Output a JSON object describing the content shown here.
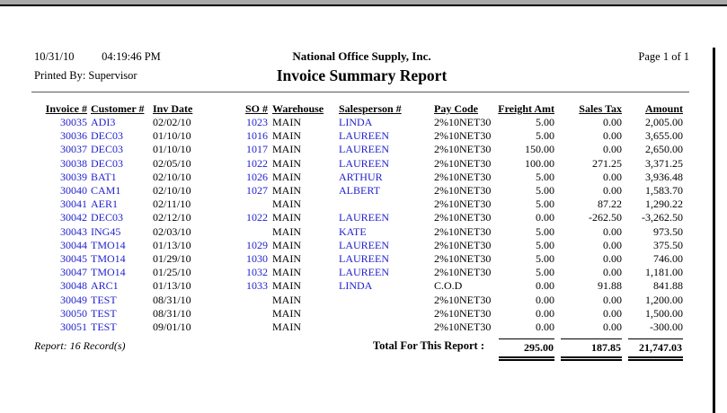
{
  "colors": {
    "link_blue": "#2222cc",
    "topbar_gray": "#a9a9a9"
  },
  "header": {
    "date": "10/31/10",
    "time": "04:19:46 PM",
    "company": "National Office Supply, Inc.",
    "page": "Page 1 of 1",
    "printed_by": "Printed By: Supervisor",
    "title": "Invoice Summary Report"
  },
  "table": {
    "columns": {
      "invoice": "Invoice #",
      "customer": "Customer #",
      "date": "Inv Date",
      "so": "SO #",
      "warehouse": "Warehouse",
      "salesperson": "Salesperson #",
      "paycode": "Pay Code",
      "freight": "Freight Amt",
      "tax": "Sales Tax",
      "amount": "Amount"
    },
    "rows": [
      {
        "invoice": "30035",
        "customer": "ADI3",
        "date": "02/02/10",
        "so": "1023",
        "warehouse": "MAIN",
        "salesperson": "LINDA",
        "paycode": "2%10NET30",
        "freight": "5.00",
        "tax": "0.00",
        "amount": "2,005.00"
      },
      {
        "invoice": "30036",
        "customer": "DEC03",
        "date": "01/10/10",
        "so": "1016",
        "warehouse": "MAIN",
        "salesperson": "LAUREEN",
        "paycode": "2%10NET30",
        "freight": "5.00",
        "tax": "0.00",
        "amount": "3,655.00"
      },
      {
        "invoice": "30037",
        "customer": "DEC03",
        "date": "01/10/10",
        "so": "1017",
        "warehouse": "MAIN",
        "salesperson": "LAUREEN",
        "paycode": "2%10NET30",
        "freight": "150.00",
        "tax": "0.00",
        "amount": "2,650.00"
      },
      {
        "invoice": "30038",
        "customer": "DEC03",
        "date": "02/05/10",
        "so": "1022",
        "warehouse": "MAIN",
        "salesperson": "LAUREEN",
        "paycode": "2%10NET30",
        "freight": "100.00",
        "tax": "271.25",
        "amount": "3,371.25"
      },
      {
        "invoice": "30039",
        "customer": "BAT1",
        "date": "02/10/10",
        "so": "1026",
        "warehouse": "MAIN",
        "salesperson": "ARTHUR",
        "paycode": "2%10NET30",
        "freight": "5.00",
        "tax": "0.00",
        "amount": "3,936.48"
      },
      {
        "invoice": "30040",
        "customer": "CAM1",
        "date": "02/10/10",
        "so": "1027",
        "warehouse": "MAIN",
        "salesperson": "ALBERT",
        "paycode": "2%10NET30",
        "freight": "5.00",
        "tax": "0.00",
        "amount": "1,583.70"
      },
      {
        "invoice": "30041",
        "customer": "AER1",
        "date": "02/11/10",
        "so": "",
        "warehouse": "MAIN",
        "salesperson": "",
        "paycode": "2%10NET30",
        "freight": "5.00",
        "tax": "87.22",
        "amount": "1,290.22"
      },
      {
        "invoice": "30042",
        "customer": "DEC03",
        "date": "02/12/10",
        "so": "1022",
        "warehouse": "MAIN",
        "salesperson": "LAUREEN",
        "paycode": "2%10NET30",
        "freight": "0.00",
        "tax": "-262.50",
        "amount": "-3,262.50"
      },
      {
        "invoice": "30043",
        "customer": "ING45",
        "date": "02/03/10",
        "so": "",
        "warehouse": "MAIN",
        "salesperson": "KATE",
        "paycode": "2%10NET30",
        "freight": "5.00",
        "tax": "0.00",
        "amount": "973.50"
      },
      {
        "invoice": "30044",
        "customer": "TMO14",
        "date": "01/13/10",
        "so": "1029",
        "warehouse": "MAIN",
        "salesperson": "LAUREEN",
        "paycode": "2%10NET30",
        "freight": "5.00",
        "tax": "0.00",
        "amount": "375.50"
      },
      {
        "invoice": "30045",
        "customer": "TMO14",
        "date": "01/29/10",
        "so": "1030",
        "warehouse": "MAIN",
        "salesperson": "LAUREEN",
        "paycode": "2%10NET30",
        "freight": "5.00",
        "tax": "0.00",
        "amount": "746.00"
      },
      {
        "invoice": "30047",
        "customer": "TMO14",
        "date": "01/25/10",
        "so": "1032",
        "warehouse": "MAIN",
        "salesperson": "LAUREEN",
        "paycode": "2%10NET30",
        "freight": "5.00",
        "tax": "0.00",
        "amount": "1,181.00"
      },
      {
        "invoice": "30048",
        "customer": "ARC1",
        "date": "01/13/10",
        "so": "1033",
        "warehouse": "MAIN",
        "salesperson": "LINDA",
        "paycode": "C.O.D",
        "freight": "0.00",
        "tax": "91.88",
        "amount": "841.88"
      },
      {
        "invoice": "30049",
        "customer": "TEST",
        "date": "08/31/10",
        "so": "",
        "warehouse": "MAIN",
        "salesperson": "",
        "paycode": "2%10NET30",
        "freight": "0.00",
        "tax": "0.00",
        "amount": "1,200.00"
      },
      {
        "invoice": "30050",
        "customer": "TEST",
        "date": "08/31/10",
        "so": "",
        "warehouse": "MAIN",
        "salesperson": "",
        "paycode": "2%10NET30",
        "freight": "0.00",
        "tax": "0.00",
        "amount": "1,500.00"
      },
      {
        "invoice": "30051",
        "customer": "TEST",
        "date": "09/01/10",
        "so": "",
        "warehouse": "MAIN",
        "salesperson": "",
        "paycode": "2%10NET30",
        "freight": "0.00",
        "tax": "0.00",
        "amount": "-300.00"
      }
    ]
  },
  "footer": {
    "record_count": "Report: 16 Record(s)",
    "total_label": "Total For This Report :",
    "total_freight": "295.00",
    "total_tax": "187.85",
    "total_amount": "21,747.03"
  }
}
